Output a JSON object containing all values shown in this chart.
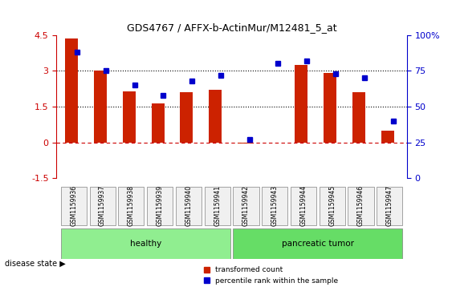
{
  "title": "GDS4767 / AFFX-b-ActinMur/M12481_5_at",
  "samples": [
    "GSM1159936",
    "GSM1159937",
    "GSM1159938",
    "GSM1159939",
    "GSM1159940",
    "GSM1159941",
    "GSM1159942",
    "GSM1159943",
    "GSM1159944",
    "GSM1159945",
    "GSM1159946",
    "GSM1159947"
  ],
  "transformed_count": [
    4.35,
    3.0,
    2.15,
    1.65,
    2.1,
    2.2,
    -0.05,
    0.0,
    3.25,
    2.9,
    2.1,
    0.5
  ],
  "percentile_rank": [
    88,
    75,
    65,
    58,
    68,
    72,
    27,
    80,
    82,
    73,
    70,
    40
  ],
  "ylim_left": [
    -1.5,
    4.5
  ],
  "ylim_right": [
    0,
    100
  ],
  "yticks_left": [
    -1.5,
    0.0,
    1.5,
    3.0,
    4.5
  ],
  "yticks_right": [
    0,
    25,
    50,
    75,
    100
  ],
  "ytick_labels_left": [
    "-1.5",
    "0",
    "1.5",
    "3",
    "4.5"
  ],
  "ytick_labels_right": [
    "0",
    "25",
    "50",
    "75",
    "100%"
  ],
  "hlines": [
    0.0,
    1.5,
    3.0
  ],
  "hline_styles": [
    "dashed",
    "dotted",
    "dotted"
  ],
  "hline_colors": [
    "#cc0000",
    "#000000",
    "#000000"
  ],
  "bar_color": "#cc2200",
  "dot_color": "#0000cc",
  "groups": [
    {
      "label": "healthy",
      "start": 0,
      "end": 6,
      "color": "#90ee90"
    },
    {
      "label": "pancreatic tumor",
      "start": 6,
      "end": 12,
      "color": "#66dd66"
    }
  ],
  "disease_state_label": "disease state",
  "legend_items": [
    {
      "color": "#cc2200",
      "label": "transformed count"
    },
    {
      "color": "#0000cc",
      "label": "percentile rank within the sample"
    }
  ],
  "bg_color": "#f0f0f0",
  "plot_bg": "#ffffff"
}
